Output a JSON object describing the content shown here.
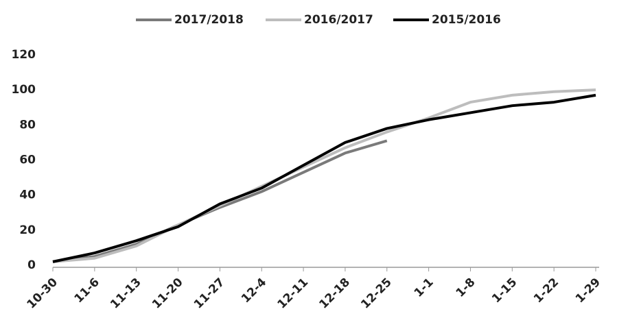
{
  "chart_data": {
    "type": "line",
    "categories": [
      "10-30",
      "11-6",
      "11-13",
      "11-20",
      "11-27",
      "12-4",
      "12-11",
      "12-18",
      "12-25",
      "1-1",
      "1-8",
      "1-15",
      "1-22",
      "1-29"
    ],
    "series": [
      {
        "name": "2017/2018",
        "color": "#7a7a7a",
        "values": [
          2,
          5,
          12,
          23,
          33,
          42,
          53,
          64,
          71,
          null,
          null,
          null,
          null,
          null
        ]
      },
      {
        "name": "2016/2017",
        "color": "#bdbdbd",
        "values": [
          2,
          4,
          11,
          23,
          34,
          45,
          56,
          67,
          76,
          84,
          93,
          97,
          99,
          100
        ]
      },
      {
        "name": "2015/2016",
        "color": "#000000",
        "values": [
          2,
          7,
          14,
          22,
          35,
          44,
          57,
          70,
          78,
          83,
          87,
          91,
          93,
          97
        ]
      }
    ],
    "ylim": [
      0,
      120
    ],
    "yticks": [
      0,
      20,
      40,
      60,
      80,
      100,
      120
    ],
    "grid": false,
    "legend": "top"
  }
}
